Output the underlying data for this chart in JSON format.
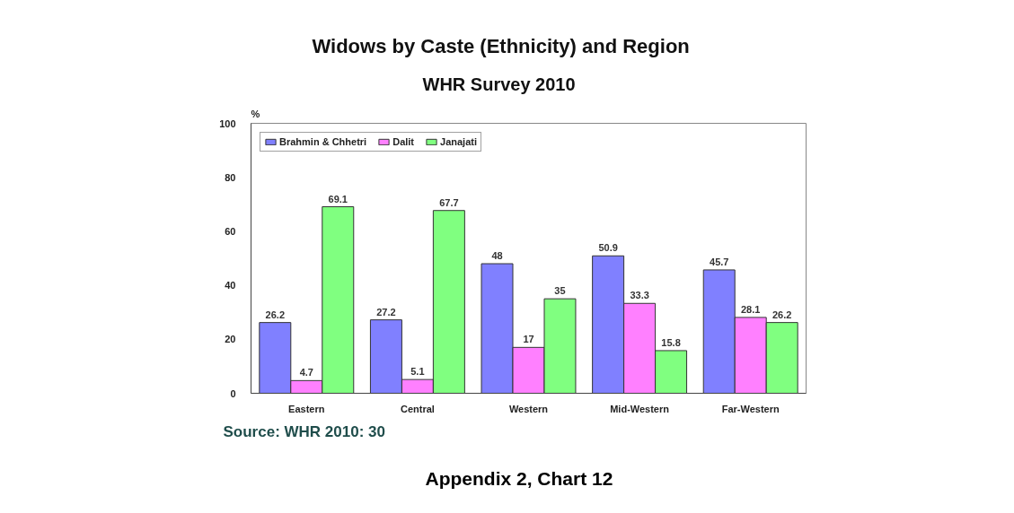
{
  "chart_data": {
    "type": "bar",
    "title": "Widows by Caste (Ethnicity) and Region",
    "subtitle": "WHR Survey 2010",
    "ylabel": "%",
    "categories": [
      "Eastern",
      "Central",
      "Western",
      "Mid-Western",
      "Far-Western"
    ],
    "series": [
      {
        "name": "Brahmin & Chhetri",
        "color": "#8080ff",
        "values": [
          26.2,
          27.2,
          48,
          50.9,
          45.7
        ]
      },
      {
        "name": "Dalit",
        "color": "#ff80ff",
        "values": [
          4.7,
          5.1,
          17,
          33.3,
          28.1
        ]
      },
      {
        "name": "Janajati",
        "color": "#80ff80",
        "values": [
          69.1,
          67.7,
          35,
          15.8,
          26.2
        ]
      }
    ],
    "ylim": [
      0,
      100
    ],
    "yticks": [
      0,
      20,
      40,
      60,
      80,
      100
    ],
    "data_labels": true,
    "legend": "top left",
    "annotations": [
      "Source: WHR 2010: 30",
      "Appendix 2, Chart 12"
    ]
  }
}
